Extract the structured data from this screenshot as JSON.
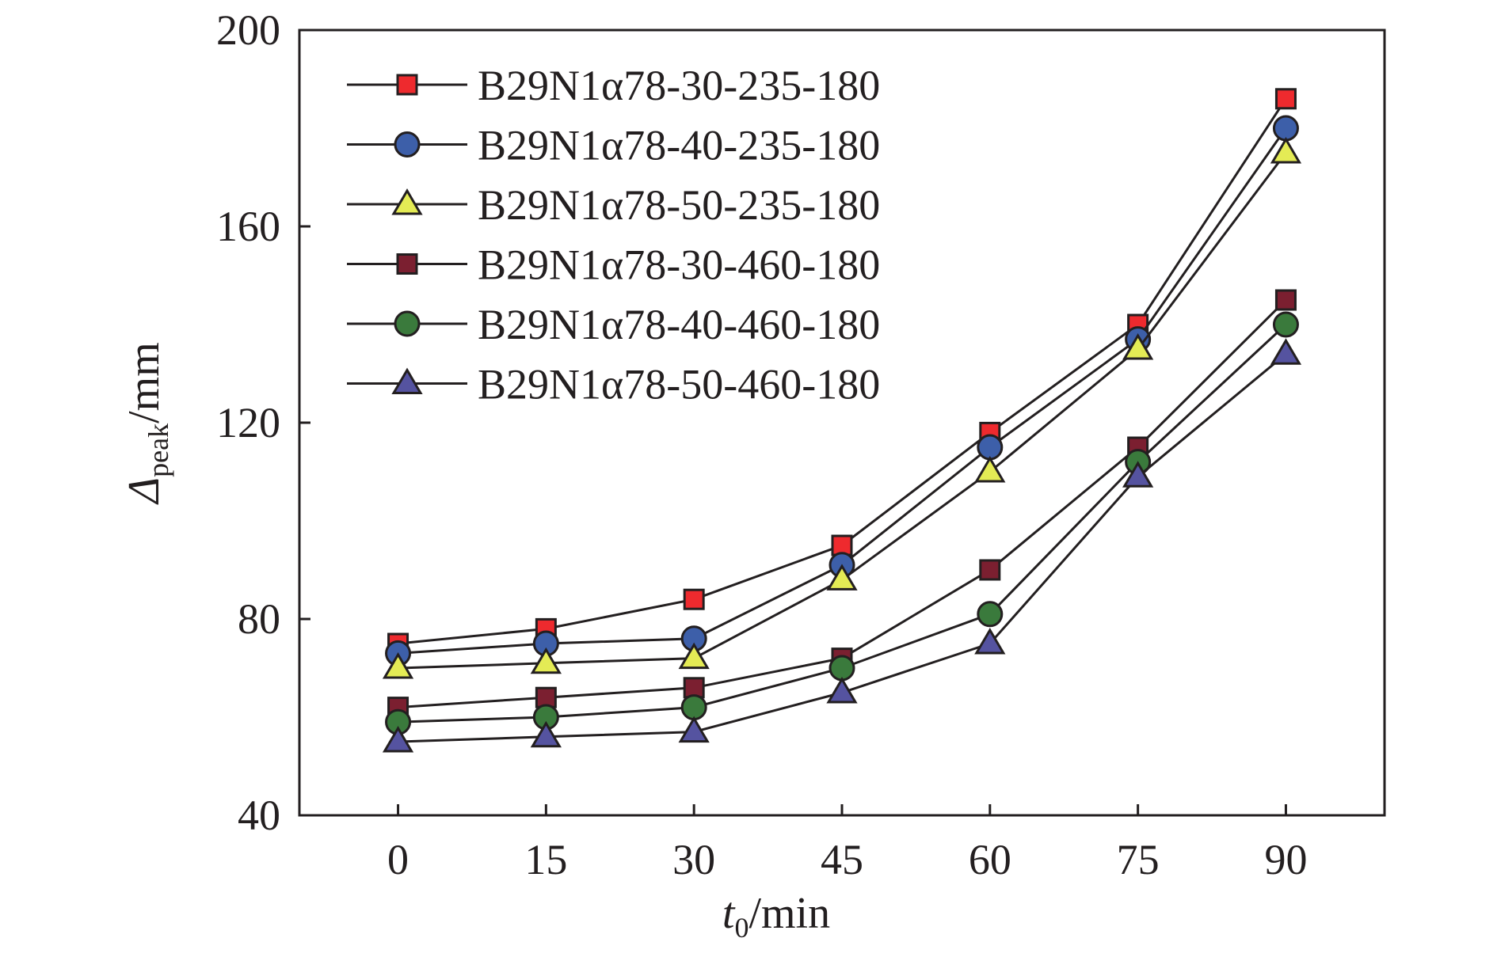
{
  "chart_data": {
    "type": "line",
    "xlabel": {
      "var": "t",
      "sub": "0",
      "unit": "/min"
    },
    "ylabel": {
      "var": "Δ",
      "sub": "peak",
      "unit": "/mm"
    },
    "x": [
      0,
      15,
      30,
      45,
      60,
      75,
      90
    ],
    "xticks": [
      "0",
      "15",
      "30",
      "45",
      "60",
      "75",
      "90"
    ],
    "xlim": [
      -10,
      100
    ],
    "ylim": [
      40,
      200
    ],
    "yticks": [
      "40",
      "80",
      "120",
      "160",
      "200"
    ],
    "grid": false,
    "legend_position": "top-left",
    "series": [
      {
        "name": "B29N1α78-30-235-180",
        "marker": "square",
        "color": "#ee2a2e",
        "values": [
          75,
          78,
          84,
          95,
          118,
          140,
          186
        ]
      },
      {
        "name": "B29N1α78-40-235-180",
        "marker": "circle",
        "color": "#3d5fa9",
        "values": [
          73,
          75,
          76,
          91,
          115,
          137,
          180
        ]
      },
      {
        "name": "B29N1α78-50-235-180",
        "marker": "triangle",
        "color": "#e4eb55",
        "values": [
          70,
          71,
          72,
          88,
          110,
          135,
          175
        ]
      },
      {
        "name": "B29N1α78-30-460-180",
        "marker": "square",
        "color": "#7b1f30",
        "values": [
          62,
          64,
          66,
          72,
          90,
          115,
          145
        ]
      },
      {
        "name": "B29N1α78-40-460-180",
        "marker": "circle",
        "color": "#3a7a3c",
        "values": [
          59,
          60,
          62,
          70,
          81,
          112,
          140
        ]
      },
      {
        "name": "B29N1α78-50-460-180",
        "marker": "triangle",
        "color": "#5553a0",
        "values": [
          55,
          56,
          57,
          65,
          75,
          109,
          134
        ]
      }
    ]
  }
}
